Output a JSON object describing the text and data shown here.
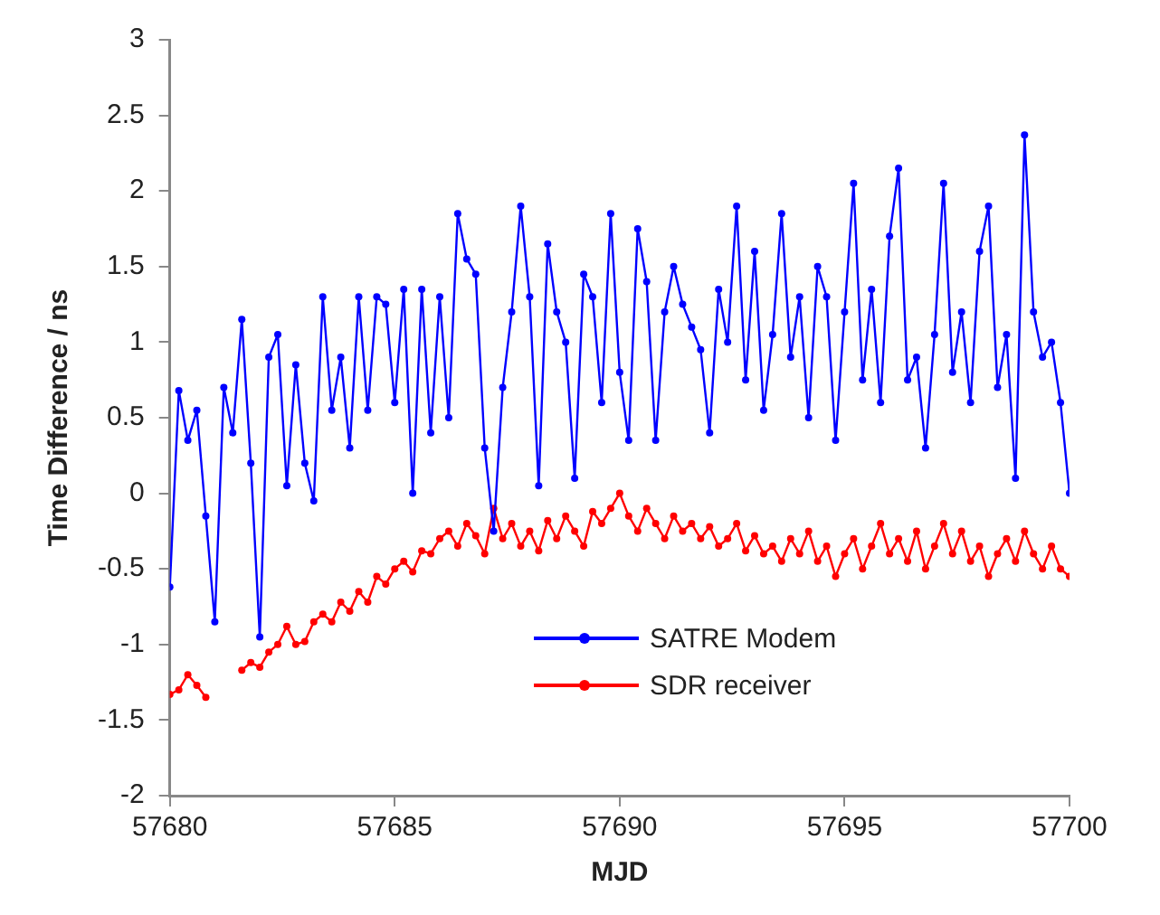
{
  "chart_data": {
    "type": "line",
    "xlabel": "MJD",
    "ylabel": "Time Difference / ns",
    "xlim": [
      57680,
      57700
    ],
    "xticks": [
      57680,
      57685,
      57690,
      57695,
      57700
    ],
    "ylim": [
      -2,
      3
    ],
    "yticks": [
      -2,
      -1.5,
      -1,
      -0.5,
      0,
      0.5,
      1,
      1.5,
      2,
      2.5,
      3
    ],
    "grid": false,
    "legend": "bottom",
    "marker": "circle",
    "line_style": "solid",
    "x": [
      57680.0,
      57680.2,
      57680.4,
      57680.6,
      57680.8,
      57681.0,
      57681.2,
      57681.4,
      57681.6,
      57681.8,
      57682.0,
      57682.2,
      57682.4,
      57682.6,
      57682.8,
      57683.0,
      57683.2,
      57683.4,
      57683.6,
      57683.8,
      57684.0,
      57684.2,
      57684.4,
      57684.6,
      57684.8,
      57685.0,
      57685.2,
      57685.4,
      57685.6,
      57685.8,
      57686.0,
      57686.2,
      57686.4,
      57686.6,
      57686.8,
      57687.0,
      57687.2,
      57687.4,
      57687.6,
      57687.8,
      57688.0,
      57688.2,
      57688.4,
      57688.6,
      57688.8,
      57689.0,
      57689.2,
      57689.4,
      57689.6,
      57689.8,
      57690.0,
      57690.2,
      57690.4,
      57690.6,
      57690.8,
      57691.0,
      57691.2,
      57691.4,
      57691.6,
      57691.8,
      57692.0,
      57692.2,
      57692.4,
      57692.6,
      57692.8,
      57693.0,
      57693.2,
      57693.4,
      57693.6,
      57693.8,
      57694.0,
      57694.2,
      57694.4,
      57694.6,
      57694.8,
      57695.0,
      57695.2,
      57695.4,
      57695.6,
      57695.8,
      57696.0,
      57696.2,
      57696.4,
      57696.6,
      57696.8,
      57697.0,
      57697.2,
      57697.4,
      57697.6,
      57697.8,
      57698.0,
      57698.2,
      57698.4,
      57698.6,
      57698.8,
      57699.0,
      57699.2,
      57699.4,
      57699.6,
      57699.8,
      57700.0
    ],
    "series": [
      {
        "name": "SATRE Modem",
        "color": "#0000ff",
        "values": [
          -0.62,
          0.68,
          0.35,
          0.55,
          -0.15,
          -0.85,
          0.7,
          0.4,
          1.15,
          0.2,
          -0.95,
          0.9,
          1.05,
          0.05,
          0.85,
          0.2,
          -0.05,
          1.3,
          0.55,
          0.9,
          0.3,
          1.3,
          0.55,
          1.3,
          1.25,
          0.6,
          1.35,
          0.0,
          1.35,
          0.4,
          1.3,
          0.5,
          1.85,
          1.55,
          1.45,
          0.3,
          -0.25,
          0.7,
          1.2,
          1.9,
          1.3,
          0.05,
          1.65,
          1.2,
          1.0,
          0.1,
          1.45,
          1.3,
          0.6,
          1.85,
          0.8,
          0.35,
          1.75,
          1.4,
          0.35,
          1.2,
          1.5,
          1.25,
          1.1,
          0.95,
          0.4,
          1.35,
          1.0,
          1.9,
          0.75,
          1.6,
          0.55,
          1.05,
          1.85,
          0.9,
          1.3,
          0.5,
          1.5,
          1.3,
          0.35,
          1.2,
          2.05,
          0.75,
          1.35,
          0.6,
          1.7,
          2.15,
          0.75,
          0.9,
          0.3,
          1.05,
          2.05,
          0.8,
          1.2,
          0.6,
          1.6,
          1.9,
          0.7,
          1.05,
          0.1,
          2.37,
          1.2,
          0.9,
          1.0,
          0.6,
          0.0
        ]
      },
      {
        "name": "SDR receiver",
        "color": "#ff0000",
        "values": [
          -1.33,
          -1.3,
          -1.2,
          -1.27,
          -1.35,
          null,
          null,
          null,
          -1.17,
          -1.12,
          -1.15,
          -1.05,
          -1.0,
          -0.88,
          -1.0,
          -0.98,
          -0.85,
          -0.8,
          -0.85,
          -0.72,
          -0.78,
          -0.65,
          -0.72,
          -0.55,
          -0.6,
          -0.5,
          -0.45,
          -0.52,
          -0.38,
          -0.4,
          -0.3,
          -0.25,
          -0.35,
          -0.2,
          -0.28,
          -0.4,
          -0.1,
          -0.3,
          -0.2,
          -0.35,
          -0.25,
          -0.38,
          -0.18,
          -0.3,
          -0.15,
          -0.25,
          -0.35,
          -0.12,
          -0.2,
          -0.1,
          0.0,
          -0.15,
          -0.25,
          -0.1,
          -0.2,
          -0.3,
          -0.15,
          -0.25,
          -0.2,
          -0.3,
          -0.22,
          -0.35,
          -0.3,
          -0.2,
          -0.38,
          -0.28,
          -0.4,
          -0.35,
          -0.45,
          -0.3,
          -0.4,
          -0.25,
          -0.45,
          -0.35,
          -0.55,
          -0.4,
          -0.3,
          -0.5,
          -0.35,
          -0.2,
          -0.4,
          -0.3,
          -0.45,
          -0.25,
          -0.5,
          -0.35,
          -0.2,
          -0.4,
          -0.25,
          -0.45,
          -0.35,
          -0.55,
          -0.4,
          -0.3,
          -0.45,
          -0.25,
          -0.4,
          -0.5,
          -0.35,
          -0.5,
          -0.55
        ]
      }
    ]
  }
}
